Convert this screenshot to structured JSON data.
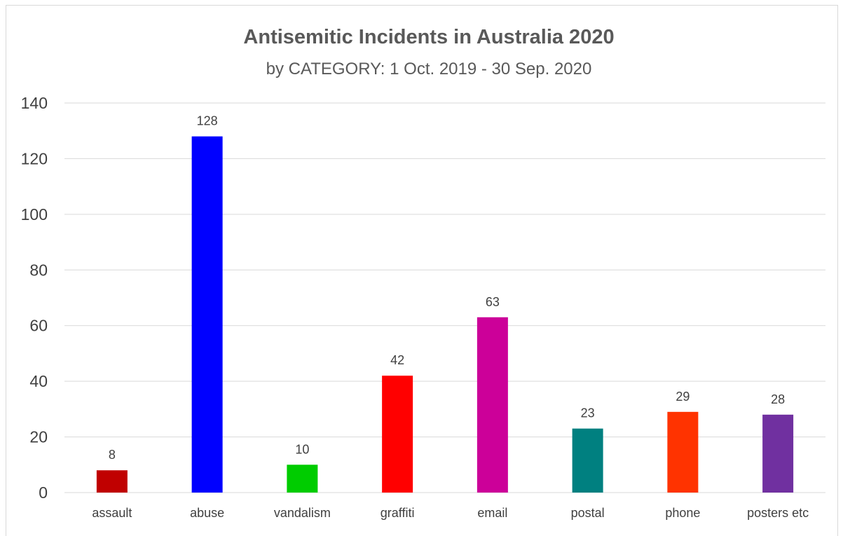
{
  "chart_data": {
    "type": "bar",
    "title": "Antisemitic Incidents in Australia 2020",
    "subtitle": "by CATEGORY: 1 Oct. 2019 - 30 Sep. 2020",
    "categories": [
      "assault",
      "abuse",
      "vandalism",
      "graffiti",
      "email",
      "postal",
      "phone",
      "posters etc"
    ],
    "values": [
      8,
      128,
      10,
      42,
      63,
      23,
      29,
      28
    ],
    "colors": [
      "#c00000",
      "#0000ff",
      "#00cc00",
      "#ff0000",
      "#cc0099",
      "#008080",
      "#ff3300",
      "#7030a0"
    ],
    "yticks": [
      "0",
      "20",
      "40",
      "60",
      "80",
      "100",
      "120",
      "140"
    ],
    "ylim": [
      0,
      140
    ],
    "grid": true,
    "data_labels": true
  }
}
